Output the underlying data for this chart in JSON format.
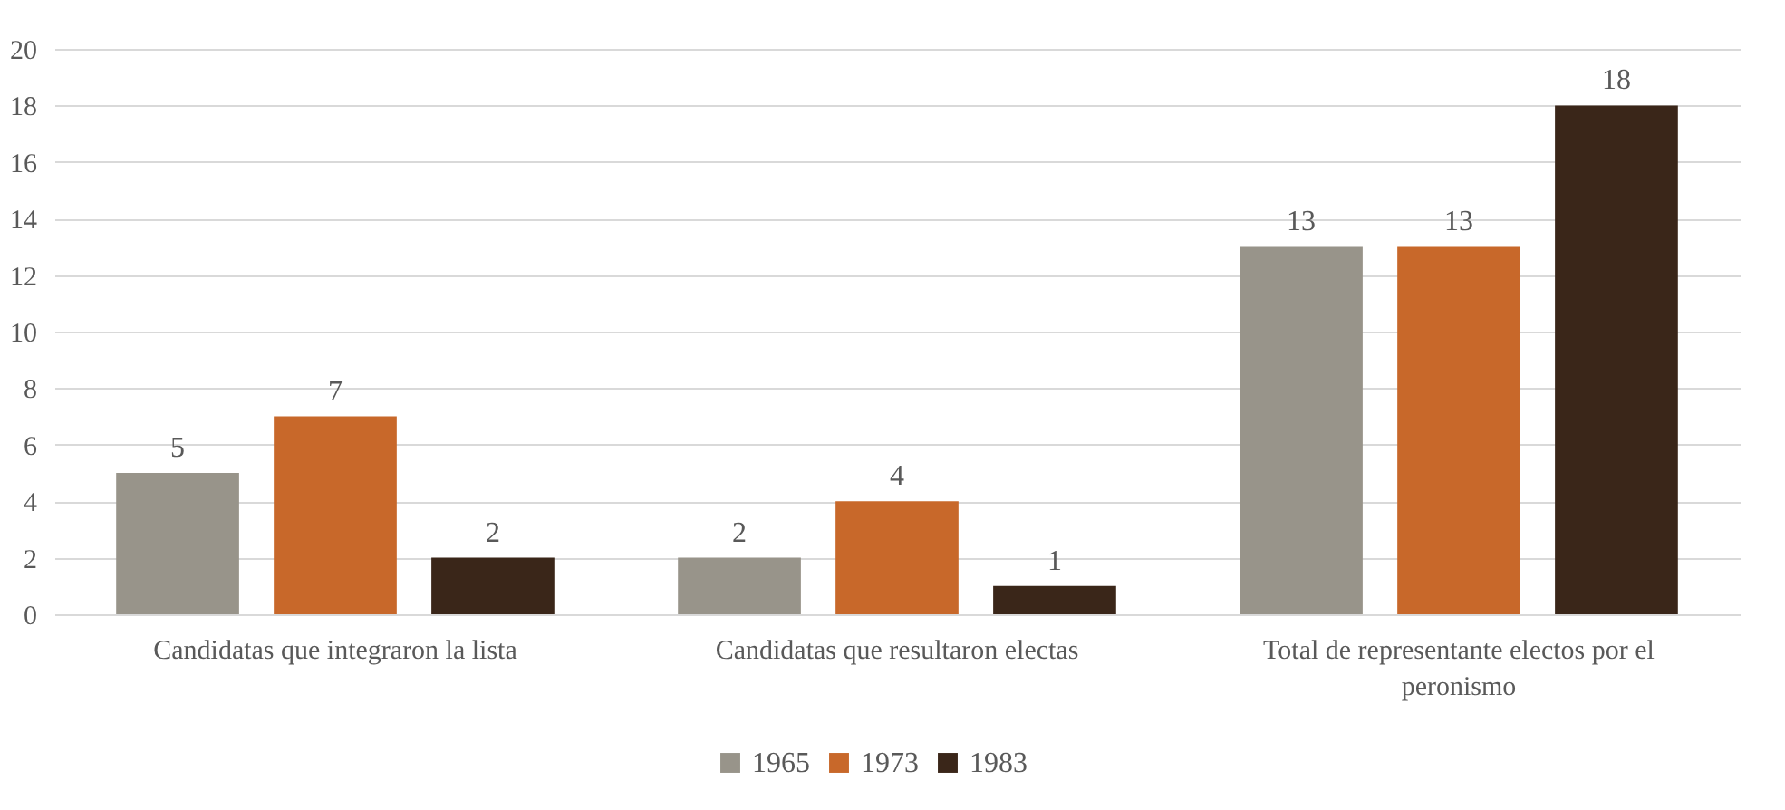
{
  "chart_data": {
    "type": "bar",
    "categories": [
      "Candidatas que integraron la lista",
      "Candidatas que resultaron  electas",
      "Total de representante electos por el peronismo"
    ],
    "series": [
      {
        "name": "1965",
        "color": "#98948a",
        "values": [
          5,
          2,
          13
        ]
      },
      {
        "name": "1973",
        "color": "#c8682a",
        "values": [
          7,
          4,
          13
        ]
      },
      {
        "name": "1983",
        "color": "#3a2619",
        "values": [
          2,
          1,
          18
        ]
      }
    ],
    "ylim": [
      0,
      20
    ],
    "yticks": [
      0,
      2,
      4,
      6,
      8,
      10,
      12,
      14,
      16,
      18,
      20
    ],
    "grid": "y",
    "legend": "bottom",
    "data_labels": true
  }
}
